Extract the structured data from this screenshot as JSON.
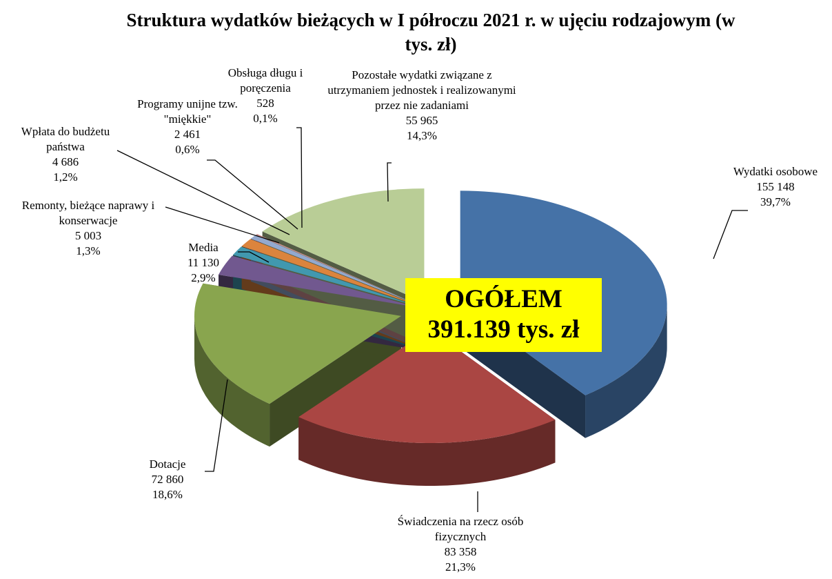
{
  "chart_data": {
    "type": "pie",
    "title": "Struktura wydatków bieżących w I półroczu 2021 r. w ujęciu rodzajowym (w tys. zł)",
    "categories": [
      "Wydatki osobowe",
      "Świadczenia na rzecz osób fizycznych",
      "Dotacje",
      "Media",
      "Remonty, bieżące naprawy i konserwacje",
      "Wpłata do budżetu państwa",
      "Programy unijne tzw. \"miękkie\"",
      "Obsługa długu i poręczenia",
      "Pozostałe wydatki związane z utrzymaniem jednostek i realizowanymi przez nie zadaniami"
    ],
    "values": [
      155148,
      83358,
      72860,
      11130,
      5003,
      4686,
      2461,
      528,
      55965
    ],
    "value_labels": [
      "155 148",
      "83 358",
      "72 860",
      "11 130",
      "5 003",
      "4 686",
      "2 461",
      "528",
      "55 965"
    ],
    "shares": [
      39.7,
      21.3,
      18.6,
      2.9,
      1.3,
      1.2,
      0.6,
      0.1,
      14.3
    ],
    "share_labels": [
      "39,7%",
      "21,3%",
      "18,6%",
      "2,9%",
      "1,3%",
      "1,2%",
      "0,6%",
      "0,1%",
      "14,3%"
    ],
    "colors": [
      "#4572a7",
      "#aa4643",
      "#89a54e",
      "#71588f",
      "#4198af",
      "#db843d",
      "#93a9cf",
      "#d19392",
      "#b9cd96"
    ],
    "annotations": [
      "OGÓŁEM",
      "391.139 tys. zł"
    ]
  }
}
